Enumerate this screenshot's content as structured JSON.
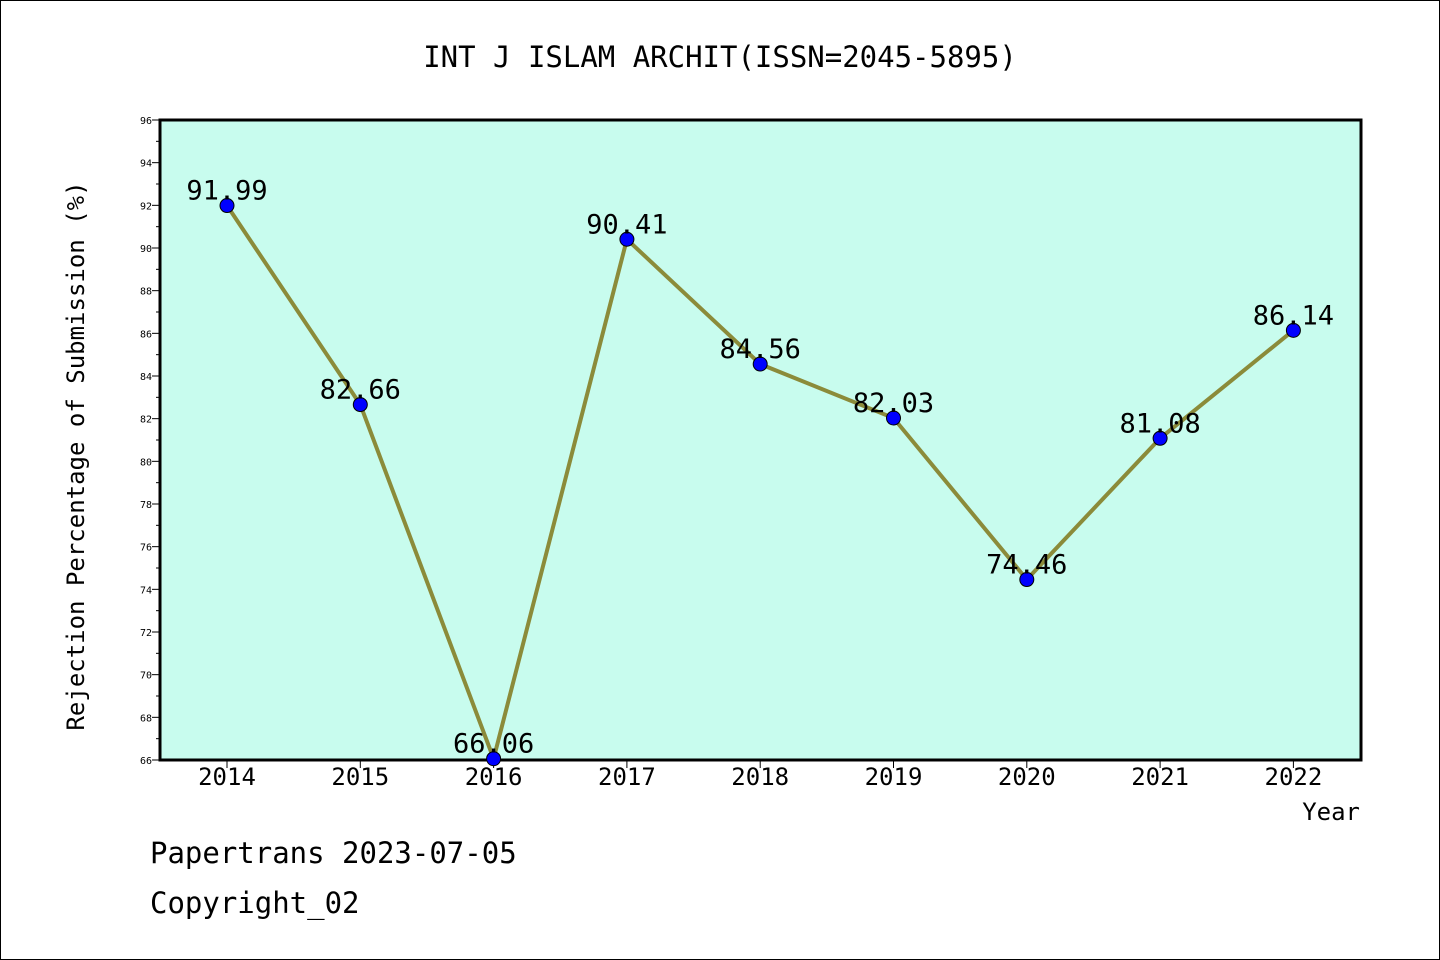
{
  "chart_data": {
    "type": "line",
    "title": "INT J ISLAM ARCHIT(ISSN=2045-5895)",
    "xlabel": "Year",
    "ylabel": "Rejection Percentage of Submission (%)",
    "categories": [
      "2014",
      "2015",
      "2016",
      "2017",
      "2018",
      "2019",
      "2020",
      "2021",
      "2022"
    ],
    "series": [
      {
        "values": [
          91.99,
          82.66,
          66.06,
          90.41,
          84.56,
          82.03,
          74.46,
          81.08,
          86.14
        ],
        "labels": [
          "91.99",
          "82.66",
          "66.06",
          "90.41",
          "84.56",
          "82.03",
          "74.46",
          "81.08",
          "86.14"
        ],
        "line_color": "#8b8b3a",
        "marker_color": "#0000ff"
      }
    ],
    "ylim": [
      66,
      96
    ],
    "yticks": [
      "66",
      "68",
      "70",
      "72",
      "74",
      "76",
      "78",
      "80",
      "82",
      "84",
      "86",
      "88",
      "90",
      "92",
      "94",
      "96"
    ],
    "plot_background": "#c8fcee",
    "grid": false,
    "legend": "none"
  },
  "footer": {
    "line1": "Papertrans 2023-07-05",
    "line2": "Copyright_02"
  }
}
